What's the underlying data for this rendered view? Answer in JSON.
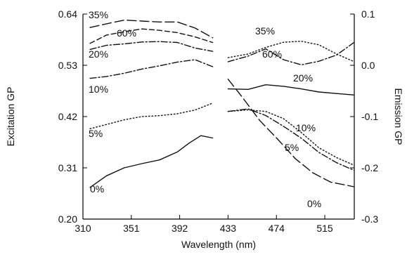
{
  "chart_data": {
    "type": "line",
    "title": "",
    "xlabel": "Wavelength (nm)",
    "ylabel_left": "Excitation GP",
    "ylabel_right": "Emission GP",
    "xlim": [
      310,
      540
    ],
    "ylim_left": [
      0.2,
      0.64
    ],
    "ylim_right": [
      -0.3,
      0.1
    ],
    "x_ticks": [
      "310",
      "351",
      "392",
      "433",
      "474",
      "515"
    ],
    "x_tick_values": [
      310,
      351,
      392,
      433,
      474,
      515
    ],
    "y_left_ticks": [
      "0.20",
      "0.31",
      "0.42",
      "0.53",
      "0.64"
    ],
    "y_left_tick_values": [
      0.2,
      0.31,
      0.42,
      0.53,
      0.64
    ],
    "y_right_ticks": [
      "0.1",
      "0.0",
      "-0.1",
      "-0.2",
      "-0.3"
    ],
    "y_right_tick_values": [
      0.1,
      0.0,
      -0.1,
      -0.2,
      -0.3
    ],
    "grid": false,
    "excitation_series": [
      {
        "name": "35%",
        "dash": "long-dash",
        "x": [
          316,
          330,
          345,
          360,
          375,
          390,
          405,
          420
        ],
        "y": [
          0.611,
          0.619,
          0.627,
          0.625,
          0.623,
          0.623,
          0.61,
          0.589
        ]
      },
      {
        "name": "60%",
        "dash": "dash",
        "x": [
          316,
          330,
          345,
          360,
          375,
          390,
          405,
          420
        ],
        "y": [
          0.577,
          0.595,
          0.602,
          0.608,
          0.605,
          0.6,
          0.591,
          0.579
        ]
      },
      {
        "name": "20%",
        "dash": "dash-dot",
        "x": [
          316,
          330,
          345,
          360,
          375,
          390,
          405,
          420
        ],
        "y": [
          0.564,
          0.573,
          0.576,
          0.58,
          0.581,
          0.579,
          0.567,
          0.56
        ]
      },
      {
        "name": "10%",
        "dash": "dash-dot",
        "x": [
          316,
          330,
          345,
          360,
          375,
          390,
          405,
          420
        ],
        "y": [
          0.502,
          0.506,
          0.513,
          0.522,
          0.529,
          0.537,
          0.542,
          0.527
        ]
      },
      {
        "name": "5%",
        "dash": "dot",
        "x": [
          316,
          330,
          345,
          360,
          375,
          390,
          405,
          420
        ],
        "y": [
          0.394,
          0.403,
          0.413,
          0.42,
          0.422,
          0.426,
          0.434,
          0.449
        ]
      },
      {
        "name": "0%",
        "dash": "solid",
        "x": [
          316,
          330,
          345,
          360,
          375,
          390,
          400,
          410,
          420
        ],
        "y": [
          0.268,
          0.293,
          0.31,
          0.319,
          0.327,
          0.344,
          0.363,
          0.379,
          0.374
        ]
      }
    ],
    "emission_series": [
      {
        "name": "35%",
        "dash": "dot",
        "x": [
          433,
          450,
          465,
          480,
          495,
          510,
          525,
          540
        ],
        "y": [
          0.015,
          0.022,
          0.035,
          0.045,
          0.047,
          0.04,
          0.022,
          0.007
        ]
      },
      {
        "name": "60%",
        "dash": "dash-dot",
        "x": [
          433,
          450,
          465,
          480,
          495,
          510,
          525,
          540
        ],
        "y": [
          0.007,
          0.018,
          0.032,
          0.011,
          0.001,
          0.008,
          0.02,
          0.045
        ]
      },
      {
        "name": "20%",
        "dash": "solid",
        "x": [
          433,
          450,
          465,
          480,
          495,
          510,
          525,
          540
        ],
        "y": [
          -0.046,
          -0.047,
          -0.038,
          -0.041,
          -0.046,
          -0.052,
          -0.055,
          -0.058
        ]
      },
      {
        "name": "10%",
        "dash": "dot",
        "x": [
          433,
          450,
          465,
          480,
          495,
          510,
          525,
          540
        ],
        "y": [
          -0.09,
          -0.087,
          -0.09,
          -0.104,
          -0.131,
          -0.161,
          -0.18,
          -0.195
        ]
      },
      {
        "name": "5%",
        "dash": "dash-dot",
        "x": [
          433,
          450,
          465,
          480,
          495,
          510,
          525,
          540
        ],
        "y": [
          -0.09,
          -0.085,
          -0.098,
          -0.119,
          -0.142,
          -0.17,
          -0.19,
          -0.205
        ]
      },
      {
        "name": "0%",
        "dash": "long-dash",
        "x": [
          433,
          445,
          460,
          475,
          490,
          505,
          520,
          540
        ],
        "y": [
          -0.027,
          -0.062,
          -0.108,
          -0.144,
          -0.182,
          -0.21,
          -0.228,
          -0.237
        ]
      }
    ]
  }
}
